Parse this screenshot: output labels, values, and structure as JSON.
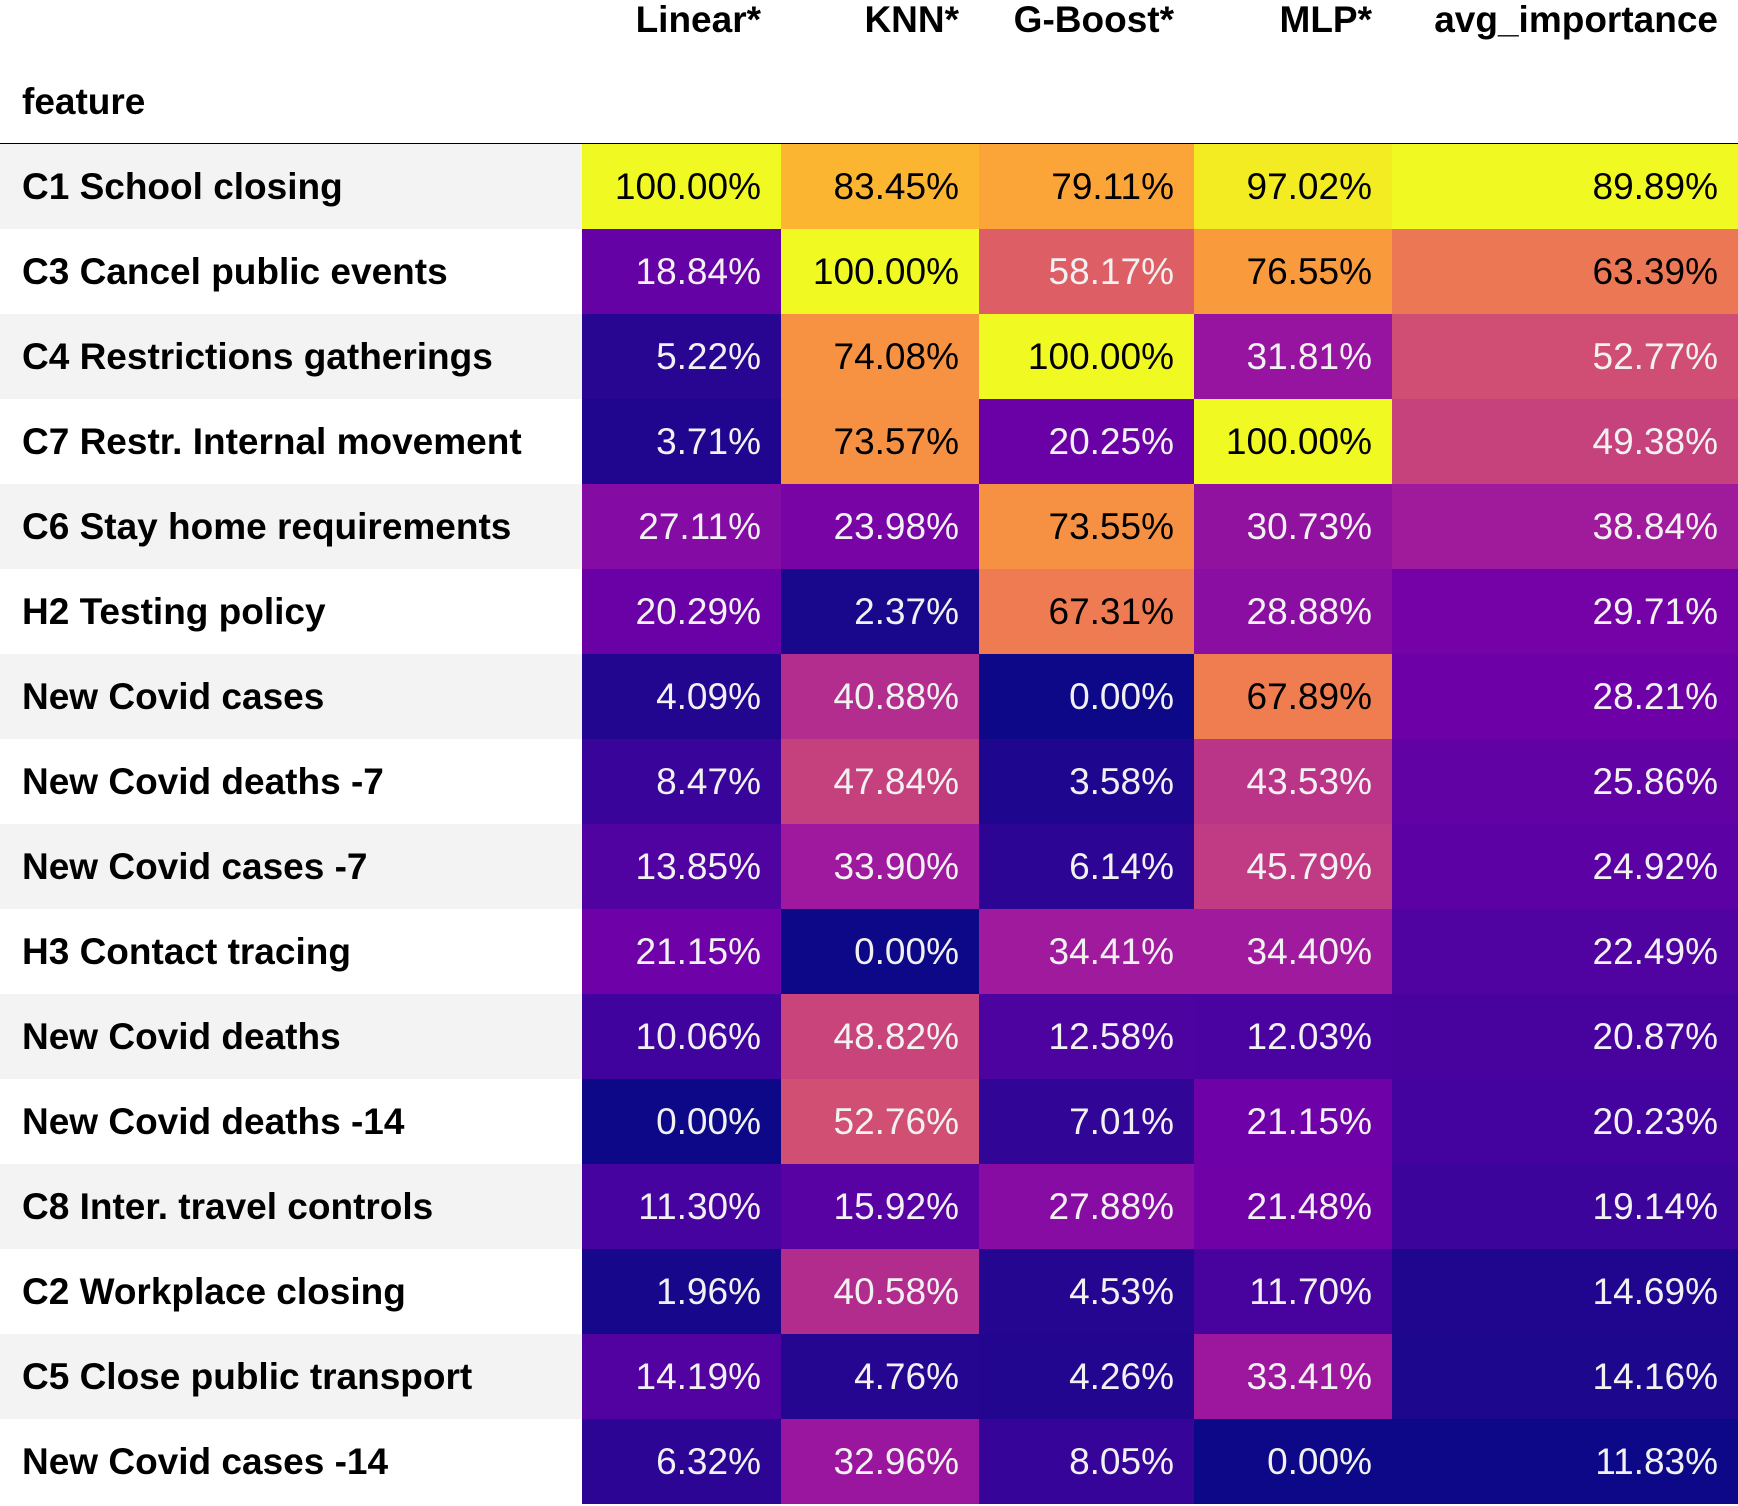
{
  "chart_data": {
    "type": "table",
    "index_name": "feature",
    "columns": [
      "Linear*",
      "KNN*",
      "G-Boost*",
      "MLP*",
      "avg_importance"
    ],
    "colormap": "plasma",
    "colormap_stops": [
      "#0d0887",
      "#46039f",
      "#7201a8",
      "#9c179e",
      "#bd3786",
      "#d8576b",
      "#ed7953",
      "#fb9f3a",
      "#fdca26",
      "#f0f921"
    ],
    "value_unit": "percent",
    "rows": [
      {
        "feature": "C1 School closing",
        "values": [
          100.0,
          83.45,
          79.11,
          97.02,
          89.89
        ]
      },
      {
        "feature": "C3 Cancel public events",
        "values": [
          18.84,
          100.0,
          58.17,
          76.55,
          63.39
        ]
      },
      {
        "feature": "C4 Restrictions gatherings",
        "values": [
          5.22,
          74.08,
          100.0,
          31.81,
          52.77
        ]
      },
      {
        "feature": "C7 Restr. Internal movement",
        "values": [
          3.71,
          73.57,
          20.25,
          100.0,
          49.38
        ]
      },
      {
        "feature": "C6 Stay home requirements",
        "values": [
          27.11,
          23.98,
          73.55,
          30.73,
          38.84
        ]
      },
      {
        "feature": "H2 Testing policy",
        "values": [
          20.29,
          2.37,
          67.31,
          28.88,
          29.71
        ]
      },
      {
        "feature": "New Covid cases",
        "values": [
          4.09,
          40.88,
          0.0,
          67.89,
          28.21
        ]
      },
      {
        "feature": "New Covid deaths -7",
        "values": [
          8.47,
          47.84,
          3.58,
          43.53,
          25.86
        ]
      },
      {
        "feature": "New Covid cases -7",
        "values": [
          13.85,
          33.9,
          6.14,
          45.79,
          24.92
        ]
      },
      {
        "feature": "H3 Contact tracing",
        "values": [
          21.15,
          0.0,
          34.41,
          34.4,
          22.49
        ]
      },
      {
        "feature": "New Covid deaths",
        "values": [
          10.06,
          48.82,
          12.58,
          12.03,
          20.87
        ]
      },
      {
        "feature": "New Covid deaths -14",
        "values": [
          0.0,
          52.76,
          7.01,
          21.15,
          20.23
        ]
      },
      {
        "feature": "C8 Inter. travel controls",
        "values": [
          11.3,
          15.92,
          27.88,
          21.48,
          19.14
        ]
      },
      {
        "feature": "C2 Workplace closing",
        "values": [
          1.96,
          40.58,
          4.53,
          11.7,
          14.69
        ]
      },
      {
        "feature": "C5 Close public transport",
        "values": [
          14.19,
          4.76,
          4.26,
          33.41,
          14.16
        ]
      },
      {
        "feature": "New Covid cases -14",
        "values": [
          6.32,
          32.96,
          8.05,
          0.0,
          11.83
        ]
      }
    ],
    "stripe_colors": [
      "#f3f3f3",
      "#ffffff"
    ],
    "text_colors": {
      "dark_bg": "#f1f1f1",
      "light_bg": "#000000"
    }
  }
}
